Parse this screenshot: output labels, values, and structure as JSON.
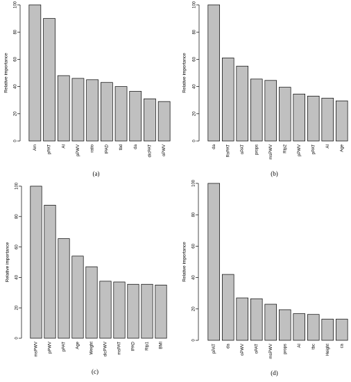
{
  "chart_data": [
    {
      "type": "bar",
      "caption": "(a)",
      "ylabel": "Relative importance",
      "ylim": [
        0,
        100
      ],
      "yticks": [
        0,
        20,
        40,
        60,
        80,
        100
      ],
      "categories": [
        "Am",
        "pPAT",
        "AI",
        "pPWV",
        "ratio",
        "IPAD",
        "tbd",
        "da",
        "dicPAT",
        "oPWV"
      ],
      "values": [
        100,
        90,
        48,
        46,
        45,
        43,
        40,
        36.5,
        31,
        29
      ]
    },
    {
      "type": "bar",
      "caption": "(b)",
      "ylabel": "Relative importance",
      "ylim": [
        0,
        100
      ],
      "yticks": [
        0,
        20,
        40,
        60,
        80,
        100
      ],
      "categories": [
        "da",
        "RoPAT",
        "oPAT",
        "props",
        "msPWV",
        "Rtp2",
        "pPWV",
        "pPAT",
        "AI",
        "Age"
      ],
      "values": [
        100,
        61,
        55,
        45.5,
        44.5,
        39.5,
        34.5,
        33,
        31.5,
        29.5
      ]
    },
    {
      "type": "bar",
      "caption": "(c)",
      "ylabel": "Relative importance",
      "ylim": [
        0,
        100
      ],
      "yticks": [
        0,
        20,
        40,
        60,
        80,
        100
      ],
      "categories": [
        "msPWV",
        "pPWV",
        "pPAT",
        "Age",
        "Weight",
        "dicPWV",
        "msPAT",
        "IPAD",
        "Rtp1",
        "BMI"
      ],
      "values": [
        100,
        87.5,
        65.5,
        54,
        47,
        37.5,
        37,
        35.5,
        35.5,
        35
      ]
    },
    {
      "type": "bar",
      "caption": "(d)",
      "ylabel": "Relative importance",
      "ylim": [
        0,
        100
      ],
      "yticks": [
        0,
        20,
        40,
        60,
        80,
        100
      ],
      "categories": [
        "pPAT",
        "da",
        "oPWV",
        "oPAT",
        "msPWV",
        "props",
        "AI",
        "tbc",
        "Height",
        "ca"
      ],
      "values": [
        100,
        42,
        27,
        26.5,
        23,
        19.5,
        17,
        16.5,
        13.5,
        13.5
      ]
    }
  ]
}
